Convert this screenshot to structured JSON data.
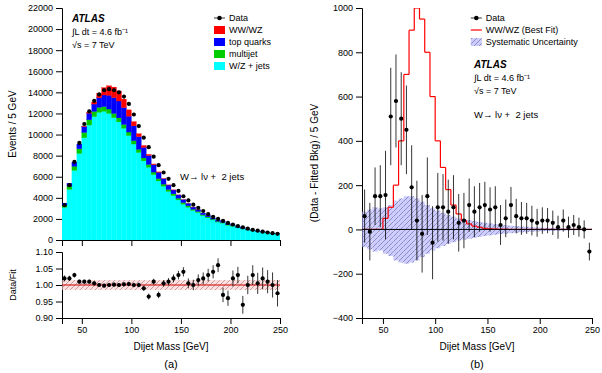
{
  "chart_data": [
    {
      "type": "histogram",
      "stacked": true,
      "ylabel": "Events / 5 GeV",
      "xlim": [
        30,
        250
      ],
      "ylim": [
        0,
        22000
      ],
      "xticks": [
        50,
        100,
        150,
        200,
        250
      ],
      "yticks": [
        0,
        2000,
        4000,
        6000,
        8000,
        10000,
        12000,
        14000,
        16000,
        18000,
        20000,
        22000
      ],
      "tick_labels": "y",
      "legend": "upper right",
      "annotations": [
        "ATLAS",
        "∫L dt = 4.6 fb⁻¹",
        "√s = 7 TeV",
        "W→ lν +  2 jets"
      ],
      "bins": [
        30,
        35,
        40,
        45,
        50,
        55,
        60,
        65,
        70,
        75,
        80,
        85,
        90,
        95,
        100,
        105,
        110,
        115,
        120,
        125,
        130,
        135,
        140,
        145,
        150,
        155,
        160,
        165,
        170,
        175,
        180,
        185,
        190,
        195,
        200,
        205,
        210,
        215,
        220,
        225,
        230,
        235,
        240,
        245,
        250
      ],
      "series": [
        {
          "name": "W/Z + jets",
          "color": "#00FFFF",
          "values": [
            3100,
            4800,
            6600,
            8200,
            9700,
            10900,
            11700,
            12100,
            12200,
            12000,
            11600,
            11200,
            10600,
            9900,
            9100,
            8300,
            7500,
            6900,
            6200,
            5600,
            5100,
            4600,
            4200,
            3800,
            3400,
            3100,
            2800,
            2600,
            2300,
            2100,
            1900,
            1700,
            1600,
            1400,
            1300,
            1150,
            1050,
            950,
            860,
            790,
            720,
            660,
            600,
            560
          ]
        },
        {
          "name": "multijet",
          "color": "#00CC00",
          "values": [
            200,
            300,
            400,
            450,
            500,
            500,
            490,
            480,
            450,
            420,
            400,
            380,
            360,
            340,
            320,
            300,
            280,
            260,
            240,
            220,
            200,
            190,
            180,
            160,
            150,
            140,
            120,
            110,
            100,
            95,
            85,
            80,
            70,
            65,
            60,
            55,
            50,
            45,
            42,
            38,
            35,
            32,
            28,
            25
          ]
        },
        {
          "name": "top quarks",
          "color": "#0000FF",
          "values": [
            200,
            280,
            380,
            450,
            550,
            620,
            700,
            900,
            1100,
            1300,
            1500,
            1600,
            1600,
            1500,
            1400,
            1200,
            1000,
            850,
            700,
            600,
            500,
            420,
            360,
            310,
            270,
            230,
            200,
            170,
            150,
            130,
            110,
            100,
            90,
            80,
            70,
            60,
            55,
            48,
            42,
            38,
            34,
            30,
            26,
            22
          ]
        },
        {
          "name": "WW/WZ",
          "color": "#FF0000",
          "values": [
            0,
            0,
            0,
            0,
            50,
            100,
            200,
            400,
            700,
            900,
            1000,
            950,
            800,
            600,
            400,
            280,
            180,
            110,
            70,
            40,
            25,
            15,
            10,
            5,
            3,
            2,
            1,
            1,
            0,
            0,
            0,
            0,
            0,
            0,
            0,
            0,
            0,
            0,
            0,
            0,
            0,
            0,
            0,
            0
          ]
        },
        {
          "name": "Data",
          "type": "scatter",
          "color": "#000000",
          "marker": "circle",
          "x": [
            32.5,
            37.5,
            42.5,
            47.5,
            52.5,
            57.5,
            62.5,
            67.5,
            72.5,
            77.5,
            82.5,
            87.5,
            92.5,
            97.5,
            102.5,
            107.5,
            112.5,
            117.5,
            122.5,
            127.5,
            132.5,
            137.5,
            142.5,
            147.5,
            152.5,
            157.5,
            162.5,
            167.5,
            172.5,
            177.5,
            182.5,
            187.5,
            192.5,
            197.5,
            202.5,
            207.5,
            212.5,
            217.5,
            222.5,
            227.5,
            232.5,
            237.5,
            242.5,
            247.5
          ],
          "values": [
            3300,
            5200,
            7400,
            9200,
            11000,
            12200,
            13200,
            13800,
            14200,
            14300,
            14200,
            14000,
            13600,
            12900,
            11900,
            10800,
            9700,
            8800,
            7900,
            7100,
            6400,
            5800,
            5200,
            4650,
            4150,
            3750,
            3350,
            3050,
            2750,
            2450,
            2200,
            2000,
            1820,
            1620,
            1470,
            1320,
            1200,
            1070,
            970,
            880,
            790,
            710,
            645,
            585
          ],
          "errors": [
            100,
            120,
            130,
            140,
            150,
            155,
            160,
            165,
            168,
            168,
            167,
            166,
            165,
            160,
            155,
            148,
            140,
            133,
            126,
            120,
            113,
            108,
            102,
            97,
            92,
            87,
            82,
            78,
            74,
            70,
            67,
            64,
            60,
            57,
            54,
            51,
            49,
            46,
            44,
            42,
            40,
            38,
            36,
            34
          ]
        }
      ]
    },
    {
      "type": "scatter",
      "color": "#000000",
      "marker": "circle",
      "xlabel": "Dijet Mass [GeV]",
      "ylabel": "Data/Fit",
      "xlim": [
        30,
        250
      ],
      "ylim": [
        0.9,
        1.1
      ],
      "xticks": [
        50,
        100,
        150,
        200,
        250
      ],
      "yticks": [
        {
          "value": 0.9,
          "label": "0.90"
        },
        0.95,
        {
          "value": 1.0,
          "label": "1.00"
        },
        1.05,
        {
          "value": 1.1,
          "label": "1.10"
        }
      ],
      "annotations": [
        "(a)"
      ],
      "band": {
        "lo": 0.985,
        "hi": 1.015,
        "color": "#FFCCCC"
      },
      "reference_line": {
        "value": 1.0,
        "color": "#CC0000"
      },
      "x": [
        32.5,
        37.5,
        42.5,
        47.5,
        52.5,
        57.5,
        62.5,
        67.5,
        72.5,
        77.5,
        82.5,
        87.5,
        92.5,
        97.5,
        102.5,
        107.5,
        112.5,
        117.5,
        122.5,
        127.5,
        132.5,
        137.5,
        142.5,
        147.5,
        152.5,
        157.5,
        162.5,
        167.5,
        172.5,
        177.5,
        182.5,
        187.5,
        192.5,
        197.5,
        202.5,
        207.5,
        212.5,
        217.5,
        222.5,
        227.5,
        232.5,
        237.5,
        242.5,
        247.5
      ],
      "values": [
        1.02,
        1.02,
        1.03,
        1.01,
        1.01,
        1.01,
        1.005,
        1.0,
        0.998,
        1.0,
        1.001,
        1.0,
        1.002,
        1.003,
        1.0,
        1.0,
        0.99,
        0.965,
        1.01,
        0.97,
        1.005,
        1.01,
        1.02,
        1.03,
        1.04,
        1.005,
        1.0,
        1.015,
        1.02,
        1.03,
        1.04,
        1.06,
        0.97,
        0.96,
        1.02,
        1.03,
        0.94,
        1.0,
        1.03,
        1.005,
        1.02,
        1.01,
        1.0,
        0.975
      ],
      "errors": [
        0.009,
        0.008,
        0.007,
        0.006,
        0.006,
        0.006,
        0.006,
        0.006,
        0.006,
        0.006,
        0.006,
        0.006,
        0.006,
        0.006,
        0.007,
        0.007,
        0.008,
        0.009,
        0.009,
        0.01,
        0.01,
        0.011,
        0.012,
        0.013,
        0.014,
        0.015,
        0.016,
        0.017,
        0.018,
        0.019,
        0.02,
        0.021,
        0.022,
        0.023,
        0.024,
        0.025,
        0.027,
        0.028,
        0.03,
        0.032,
        0.033,
        0.035,
        0.038,
        0.04
      ]
    },
    {
      "type": "histogram",
      "xlabel": "Dijet Mass [GeV]",
      "ylabel": "(Data - Fitted Bkg) / 5 GeV",
      "xlim": [
        30,
        250
      ],
      "ylim": [
        -400,
        1000
      ],
      "xticks": [
        50,
        100,
        150,
        200,
        250
      ],
      "yticks": [
        {
          "value": -400,
          "label": "−400"
        },
        {
          "value": -200,
          "label": "−200"
        },
        0,
        200,
        400,
        600,
        800,
        1000
      ],
      "legend": "upper right",
      "annotations": [
        "ATLAS",
        "∫L dt = 4.6 fb⁻¹",
        "√s = 7 TeV",
        "W→ lν +  2 jets",
        "(b)"
      ],
      "reference_line": {
        "value": 0,
        "color": "#000000"
      },
      "bins": [
        30,
        35,
        40,
        45,
        50,
        55,
        60,
        65,
        70,
        75,
        80,
        85,
        90,
        95,
        100,
        105,
        110,
        115,
        120,
        125,
        130,
        135,
        140,
        145,
        150,
        155,
        160,
        165,
        170,
        175,
        180,
        185,
        190,
        195,
        200,
        205,
        210,
        215,
        220,
        225,
        230,
        235,
        240,
        245,
        250
      ],
      "series": [
        {
          "name": "Data",
          "type": "scatter",
          "color": "#000000",
          "marker": "circle",
          "x": [
            32.5,
            37.5,
            42.5,
            47.5,
            52.5,
            57.5,
            62.5,
            67.5,
            72.5,
            77.5,
            82.5,
            87.5,
            92.5,
            97.5,
            102.5,
            107.5,
            112.5,
            117.5,
            122.5,
            127.5,
            132.5,
            137.5,
            142.5,
            147.5,
            152.5,
            157.5,
            162.5,
            167.5,
            172.5,
            177.5,
            182.5,
            187.5,
            192.5,
            197.5,
            202.5,
            207.5,
            212.5,
            217.5,
            222.5,
            227.5,
            232.5,
            237.5,
            242.5,
            247.5
          ],
          "values": [
            60,
            -10,
            150,
            150,
            155,
            510,
            580,
            500,
            450,
            190,
            40,
            -20,
            150,
            -60,
            100,
            100,
            80,
            100,
            30,
            40,
            110,
            80,
            100,
            110,
            90,
            100,
            20,
            50,
            110,
            60,
            50,
            50,
            40,
            30,
            40,
            40,
            30,
            10,
            40,
            10,
            20,
            10,
            0,
            -100
          ],
          "errors": [
            120,
            130,
            130,
            140,
            200,
            220,
            210,
            210,
            200,
            190,
            180,
            175,
            175,
            165,
            155,
            150,
            145,
            145,
            130,
            125,
            120,
            115,
            110,
            105,
            100,
            95,
            90,
            85,
            82,
            78,
            74,
            70,
            67,
            63,
            60,
            57,
            55,
            52,
            50,
            48,
            45,
            43,
            41,
            40
          ]
        },
        {
          "name": "WW/WZ (Best Fit)",
          "type": "step",
          "color": "#FF0000",
          "values": [
            0,
            0,
            0,
            0,
            50,
            100,
            200,
            400,
            700,
            900,
            1000,
            950,
            800,
            600,
            400,
            280,
            180,
            110,
            70,
            40,
            25,
            15,
            10,
            5,
            3,
            2,
            1,
            1,
            0,
            0,
            0,
            0,
            0,
            0,
            0,
            0,
            0,
            0,
            0,
            0,
            0,
            0,
            0,
            0
          ]
        },
        {
          "name": "Systematic Uncertainty",
          "type": "band",
          "color": "#AAAAFF",
          "upper": [
            80,
            90,
            100,
            95,
            100,
            110,
            130,
            140,
            150,
            150,
            140,
            125,
            110,
            95,
            85,
            75,
            65,
            58,
            50,
            46,
            42,
            38,
            34,
            30,
            27,
            24,
            21,
            19,
            17,
            15,
            13,
            12,
            10,
            9,
            8,
            7,
            7,
            6,
            5,
            5,
            4,
            4,
            3,
            3
          ],
          "lower": [
            -80,
            -90,
            -100,
            -95,
            -110,
            -120,
            -140,
            -150,
            -155,
            -150,
            -140,
            -125,
            -110,
            -95,
            -85,
            -75,
            -65,
            -58,
            -50,
            -46,
            -42,
            -38,
            -34,
            -30,
            -27,
            -24,
            -21,
            -19,
            -17,
            -15,
            -13,
            -12,
            -10,
            -9,
            -8,
            -7,
            -7,
            -6,
            -5,
            -5,
            -4,
            -4,
            -3,
            -3
          ]
        }
      ]
    }
  ]
}
